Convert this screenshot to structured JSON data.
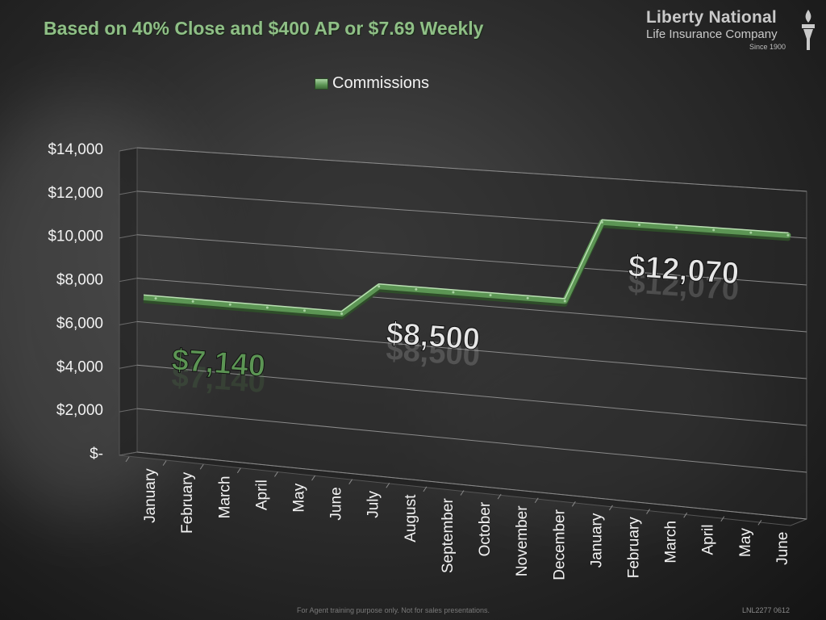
{
  "slide": {
    "title": "Based on 40% Close and $400 AP or $7.69 Weekly",
    "footer_note": "For Agent training purpose only. Not for sales presentations.",
    "footer_code": "LNL2277 0612"
  },
  "logo": {
    "line1": "Liberty National",
    "line2": "Life Insurance Company",
    "line3": "Since 1900",
    "icon": "torch-icon"
  },
  "colors": {
    "title": "#8fbf86",
    "series": "#5c9554",
    "annotation": "#e6e6e6"
  },
  "chart_data": {
    "type": "line",
    "style": "3d",
    "legend_position": "top",
    "grid": true,
    "ylim": [
      0,
      14000
    ],
    "yticks": [
      0,
      2000,
      4000,
      6000,
      8000,
      10000,
      12000,
      14000
    ],
    "ytick_labels": [
      "$-",
      "$2,000",
      "$4,000",
      "$6,000",
      "$8,000",
      "$10,000",
      "$12,000",
      "$14,000"
    ],
    "categories": [
      "January",
      "February",
      "March",
      "April",
      "May",
      "June",
      "July",
      "August",
      "September",
      "October",
      "November",
      "December",
      "January",
      "February",
      "March",
      "April",
      "May",
      "June"
    ],
    "series": [
      {
        "name": "Commissions",
        "values": [
          7140,
          7140,
          7140,
          7140,
          7140,
          7140,
          8500,
          8500,
          8500,
          8500,
          8500,
          8500,
          12070,
          12070,
          12070,
          12070,
          12070,
          12070
        ]
      }
    ],
    "annotations": [
      {
        "text": "$7,140",
        "color": "#5c9554"
      },
      {
        "text": "$8,500",
        "color": "#e6e6e6"
      },
      {
        "text": "$12,070",
        "color": "#e6e6e6"
      }
    ]
  }
}
